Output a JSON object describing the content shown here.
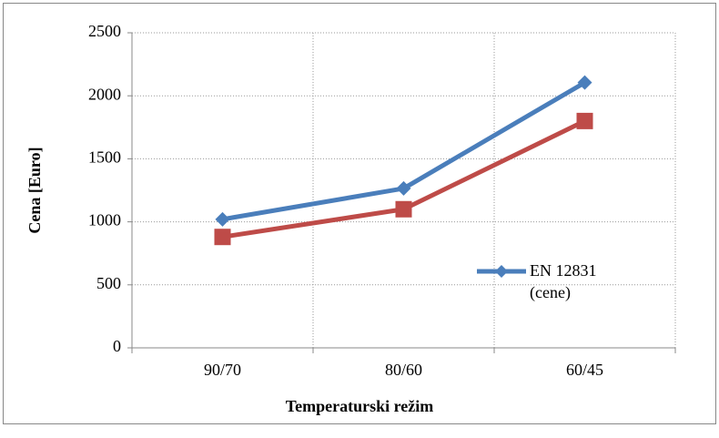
{
  "chart_data": {
    "type": "line",
    "x_label": "Temperaturski režim",
    "y_label": "Cena [Euro]",
    "categories": [
      "90/70",
      "80/60",
      "60/45"
    ],
    "series": [
      {
        "name": "EN 12831 (cene)",
        "color": "#4a7ebb",
        "marker": "diamond",
        "values": [
          1020,
          1265,
          2105
        ]
      },
      {
        "color": "#be4b48",
        "marker": "square",
        "values": [
          880,
          1100,
          1800
        ]
      }
    ],
    "ylim": [
      0,
      2500
    ],
    "yticks": [
      0,
      500,
      1000,
      1500,
      2000,
      2500
    ],
    "grid": true,
    "legend": "right"
  }
}
